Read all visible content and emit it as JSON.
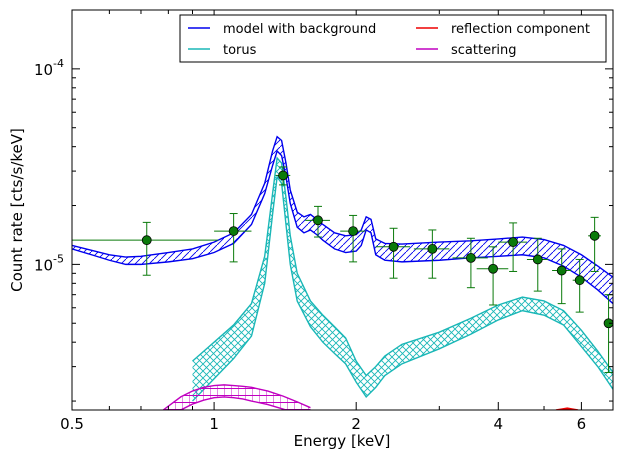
{
  "chart_data": {
    "type": "line",
    "xlabel": "Energy [keV]",
    "ylabel": "Count rate [cts/s/keV]",
    "xscale": "log",
    "yscale": "log",
    "xlim": [
      0.5,
      7.0
    ],
    "ylim": [
      1.8e-06,
      0.0002
    ],
    "grid": false,
    "legend_position": "top-right",
    "x_ticks": [
      {
        "value": 0.5,
        "label": "0.5"
      },
      {
        "value": 1,
        "label": "1"
      },
      {
        "value": 2,
        "label": "2"
      },
      {
        "value": 4,
        "label": "4"
      },
      {
        "value": 6,
        "label": "6"
      }
    ],
    "y_ticks": [
      {
        "value": 1e-05,
        "base": "10",
        "exp": "-5"
      },
      {
        "value": 0.0001,
        "base": "10",
        "exp": "-4"
      }
    ],
    "legend": [
      {
        "label": "model with background",
        "color": "#0000ee"
      },
      {
        "label": "torus",
        "color": "#1ab7b7"
      },
      {
        "label": "reflection component",
        "color": "#ee0000"
      },
      {
        "label": "scattering",
        "color": "#c000c0"
      }
    ],
    "series": [
      {
        "name": "model with background",
        "color": "#0000ee",
        "x": [
          0.5,
          0.55,
          0.6,
          0.65,
          0.7,
          0.8,
          0.9,
          1.0,
          1.1,
          1.2,
          1.28,
          1.33,
          1.36,
          1.39,
          1.42,
          1.45,
          1.5,
          1.55,
          1.6,
          1.65,
          1.7,
          1.8,
          1.9,
          2.0,
          2.05,
          2.1,
          2.15,
          2.2,
          2.3,
          2.5,
          3.0,
          3.5,
          4.0,
          4.5,
          5.0,
          5.5,
          6.0,
          6.5,
          7.0
        ],
        "upper": [
          1.25e-05,
          1.18e-05,
          1.12e-05,
          1.09e-05,
          1.1e-05,
          1.15e-05,
          1.2e-05,
          1.3e-05,
          1.45e-05,
          1.8e-05,
          2.6e-05,
          3.8e-05,
          4.5e-05,
          4.3e-05,
          3.3e-05,
          2.4e-05,
          1.85e-05,
          1.75e-05,
          1.8e-05,
          1.7e-05,
          1.6e-05,
          1.45e-05,
          1.4e-05,
          1.42e-05,
          1.5e-05,
          1.75e-05,
          1.7e-05,
          1.35e-05,
          1.28e-05,
          1.27e-05,
          1.3e-05,
          1.32e-05,
          1.35e-05,
          1.38e-05,
          1.34e-05,
          1.25e-05,
          1.12e-05,
          9.8e-06,
          8.6e-06
        ],
        "lower": [
          1.2e-05,
          1.12e-05,
          1.05e-05,
          1e-05,
          1e-05,
          1.03e-05,
          1.07e-05,
          1.15e-05,
          1.28e-05,
          1.6e-05,
          2.3e-05,
          3.2e-05,
          3.8e-05,
          3.6e-05,
          2.8e-05,
          2.05e-05,
          1.55e-05,
          1.45e-05,
          1.5e-05,
          1.42e-05,
          1.33e-05,
          1.2e-05,
          1.15e-05,
          1.17e-05,
          1.25e-05,
          1.5e-05,
          1.45e-05,
          1.12e-05,
          1.05e-05,
          1.03e-05,
          1.05e-05,
          1.08e-05,
          1.1e-05,
          1.12e-05,
          1.08e-05,
          9.8e-06,
          8.6e-06,
          7.4e-06,
          6.3e-06
        ]
      },
      {
        "name": "torus",
        "color": "#1ab7b7",
        "x": [
          0.9,
          1.0,
          1.1,
          1.2,
          1.28,
          1.33,
          1.36,
          1.39,
          1.42,
          1.45,
          1.5,
          1.6,
          1.7,
          1.8,
          1.9,
          2.0,
          2.1,
          2.2,
          2.3,
          2.5,
          3.0,
          3.5,
          4.0,
          4.5,
          5.0,
          5.5,
          6.0,
          6.5,
          7.0
        ],
        "upper": [
          3.2e-06,
          4e-06,
          4.9e-06,
          6.3e-06,
          1.1e-05,
          2.3e-05,
          3.5e-05,
          3.3e-05,
          2.2e-05,
          1.4e-05,
          9e-06,
          6.5e-06,
          5.5e-06,
          4.8e-06,
          4.2e-06,
          3.2e-06,
          2.7e-06,
          3e-06,
          3.4e-06,
          3.9e-06,
          4.5e-06,
          5.3e-06,
          6.2e-06,
          6.8e-06,
          6.5e-06,
          5.8e-06,
          4.6e-06,
          3.6e-06,
          2.8e-06
        ],
        "lower": [
          2e-06,
          2.6e-06,
          3.3e-06,
          4.3e-06,
          8e-06,
          1.8e-05,
          2.8e-05,
          2.6e-05,
          1.6e-05,
          1e-05,
          6.5e-06,
          4.8e-06,
          4e-06,
          3.5e-06,
          3.1e-06,
          2.5e-06,
          2.1e-06,
          2.35e-06,
          2.7e-06,
          3.1e-06,
          3.7e-06,
          4.4e-06,
          5.2e-06,
          5.8e-06,
          5.5e-06,
          4.9e-06,
          3.8e-06,
          3e-06,
          2.3e-06
        ]
      },
      {
        "name": "scattering",
        "color": "#c000c0",
        "x": [
          0.78,
          0.85,
          0.9,
          0.95,
          1.0,
          1.05,
          1.1,
          1.15,
          1.2,
          1.3,
          1.4,
          1.5,
          1.6
        ],
        "upper": [
          1.8e-06,
          2.1e-06,
          2.25e-06,
          2.35e-06,
          2.4e-06,
          2.42e-06,
          2.4e-06,
          2.38e-06,
          2.35e-06,
          2.25e-06,
          2.12e-06,
          1.98e-06,
          1.85e-06
        ],
        "lower": [
          1.5e-06,
          1.8e-06,
          1.93e-06,
          2.02e-06,
          2.08e-06,
          2.1e-06,
          2.08e-06,
          2.05e-06,
          2e-06,
          1.92e-06,
          1.82e-06,
          1.72e-06,
          1.6e-06
        ]
      },
      {
        "name": "reflection component",
        "color": "#ee0000",
        "x": [
          5.3,
          5.45,
          5.6,
          5.75,
          5.9
        ],
        "upper": [
          1.8e-06,
          1.82e-06,
          1.84e-06,
          1.82e-06,
          1.8e-06
        ],
        "lower": [
          1.75e-06,
          1.77e-06,
          1.79e-06,
          1.77e-06,
          1.75e-06
        ]
      }
    ],
    "data_points": {
      "color": "#0a7a0a",
      "points": [
        {
          "x": 0.72,
          "y": 1.33e-05,
          "xerr_low": 0.22,
          "xerr_high": 0.3,
          "yerr_low": 4.5e-06,
          "yerr_high": 3.1e-06
        },
        {
          "x": 1.1,
          "y": 1.48e-05,
          "xerr_low": 0.1,
          "xerr_high": 0.1,
          "yerr_low": 4.5e-06,
          "yerr_high": 3.4e-06
        },
        {
          "x": 1.4,
          "y": 2.85e-05,
          "xerr_low": 0.05,
          "xerr_high": 0.05,
          "yerr_low": 3e-06,
          "yerr_high": 3e-06
        },
        {
          "x": 1.66,
          "y": 1.68e-05,
          "xerr_low": 0.1,
          "xerr_high": 0.1,
          "yerr_low": 3e-06,
          "yerr_high": 3e-06
        },
        {
          "x": 1.97,
          "y": 1.48e-05,
          "xerr_low": 0.12,
          "xerr_high": 0.12,
          "yerr_low": 4.5e-06,
          "yerr_high": 3e-06
        },
        {
          "x": 2.4,
          "y": 1.23e-05,
          "xerr_low": 0.2,
          "xerr_high": 0.2,
          "yerr_low": 3.8e-06,
          "yerr_high": 3e-06
        },
        {
          "x": 2.9,
          "y": 1.2e-05,
          "xerr_low": 0.25,
          "xerr_high": 0.25,
          "yerr_low": 3.5e-06,
          "yerr_high": 3e-06
        },
        {
          "x": 3.5,
          "y": 1.08e-05,
          "xerr_low": 0.3,
          "xerr_high": 0.3,
          "yerr_low": 3.2e-06,
          "yerr_high": 2.8e-06
        },
        {
          "x": 3.9,
          "y": 9.5e-06,
          "xerr_low": 0.3,
          "xerr_high": 0.3,
          "yerr_low": 3.3e-06,
          "yerr_high": 2.8e-06
        },
        {
          "x": 4.3,
          "y": 1.3e-05,
          "xerr_low": 0.3,
          "xerr_high": 0.3,
          "yerr_low": 3.8e-06,
          "yerr_high": 3.3e-06
        },
        {
          "x": 4.85,
          "y": 1.06e-05,
          "xerr_low": 0.25,
          "xerr_high": 0.25,
          "yerr_low": 3.3e-06,
          "yerr_high": 3e-06
        },
        {
          "x": 5.45,
          "y": 9.3e-06,
          "xerr_low": 0.25,
          "xerr_high": 0.25,
          "yerr_low": 3e-06,
          "yerr_high": 2.7e-06
        },
        {
          "x": 5.95,
          "y": 8.3e-06,
          "xerr_low": 0.2,
          "xerr_high": 0.2,
          "yerr_low": 2.6e-06,
          "yerr_high": 2.3e-06
        },
        {
          "x": 6.4,
          "y": 1.4e-05,
          "xerr_low": 0.2,
          "xerr_high": 0.2,
          "yerr_low": 4.8e-06,
          "yerr_high": 3.4e-06
        },
        {
          "x": 6.85,
          "y": 5e-06,
          "xerr_low": 0.15,
          "xerr_high": 0.15,
          "yerr_low": 2.2e-06,
          "yerr_high": 2e-06
        }
      ]
    }
  }
}
